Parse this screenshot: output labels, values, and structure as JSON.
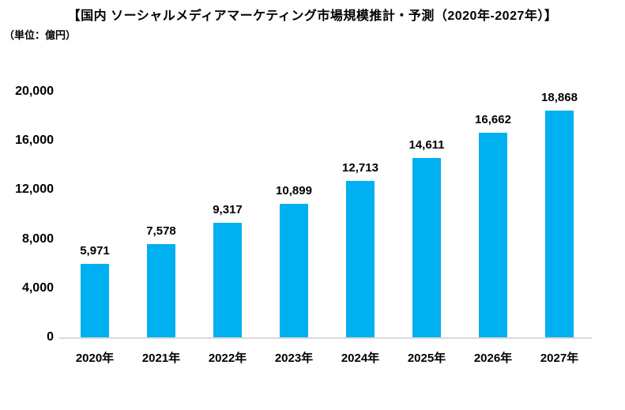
{
  "header": {
    "title": "【国内 ソーシャルメディアマーケティング市場規模推計・予測（2020年-2027年）】",
    "unit_label": "（単位：億円）"
  },
  "chart_data": {
    "type": "bar",
    "title": "【国内 ソーシャルメディアマーケティング市場規模推計・予測（2020年-2027年）】",
    "subtitle": "（単位：億円）",
    "categories": [
      "2020年",
      "2021年",
      "2022年",
      "2023年",
      "2024年",
      "2025年",
      "2026年",
      "2027年"
    ],
    "values": [
      5971,
      7578,
      9317,
      10899,
      12713,
      14611,
      16662,
      18868
    ],
    "value_labels": [
      "5,971",
      "7,578",
      "9,317",
      "10,899",
      "12,713",
      "14,611",
      "16,662",
      "18,868"
    ],
    "xlabel": "",
    "ylabel": "億円",
    "ylim": [
      0,
      20000
    ],
    "ytick_values": [
      0,
      4000,
      8000,
      12000,
      16000,
      20000
    ],
    "ytick_labels": [
      "0",
      "4,000",
      "8,000",
      "12,000",
      "16,000",
      "20,000"
    ],
    "grid": false,
    "legend": false,
    "bar_color": "#00b0f0",
    "axis_line_color": "#d9d9d9",
    "text_color": "#000000"
  }
}
